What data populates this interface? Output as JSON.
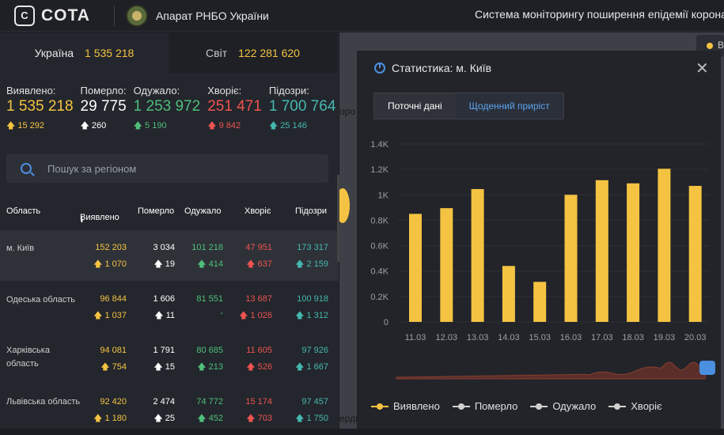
{
  "header": {
    "logo_text": "COTA",
    "logo_mark": "C",
    "org": "Апарат РНБО України",
    "system_title": "Система моніторингу поширення епідемії коронавірусу"
  },
  "tabs": [
    {
      "label": "Україна",
      "value": "1 535 218"
    },
    {
      "label": "Світ",
      "value": "122 281 620"
    }
  ],
  "stats": [
    {
      "label": "Виявлено:",
      "value": "1 535 218",
      "delta": "15 292",
      "color": "yellow"
    },
    {
      "label": "Померло:",
      "value": "29 775",
      "delta": "260",
      "color": "white"
    },
    {
      "label": "Одужало:",
      "value": "1 253 972",
      "delta": "5 190",
      "color": "green"
    },
    {
      "label": "Хворіє:",
      "value": "251 471",
      "delta": "9 842",
      "color": "red"
    },
    {
      "label": "Підозри:",
      "value": "1 700 764",
      "delta": "25 146",
      "color": "teal"
    }
  ],
  "search": {
    "placeholder": "Пошук за регіоном"
  },
  "table": {
    "headers": [
      "Область",
      "Виявлено",
      "Померло",
      "Одужало",
      "Хворіє",
      "Підозри"
    ],
    "rows": [
      {
        "name": "м. Київ",
        "vals": [
          "152 203",
          "3 034",
          "101 218",
          "47 951",
          "173 317"
        ],
        "deltas": [
          "1 070",
          "19",
          "414",
          "637",
          "2 159"
        ]
      },
      {
        "name": "Одеська область",
        "vals": [
          "96 844",
          "1 606",
          "81 551",
          "13 687",
          "100 918"
        ],
        "deltas": [
          "1 037",
          "11",
          "-",
          "1 026",
          "1 312"
        ]
      },
      {
        "name": "Харківська область",
        "vals": [
          "94 081",
          "1 791",
          "80 685",
          "11 605",
          "97 926"
        ],
        "deltas": [
          "754",
          "15",
          "213",
          "526",
          "1 667"
        ]
      },
      {
        "name": "Львівська область",
        "vals": [
          "92 420",
          "2 474",
          "74 772",
          "15 174",
          "97 457"
        ],
        "deltas": [
          "1 180",
          "25",
          "452",
          "703",
          "1 750"
        ]
      }
    ]
  },
  "map": {
    "label_top": "оро",
    "label_bottom": "ерди",
    "badge_text": "В"
  },
  "panel": {
    "title": "Статистика: м. Київ",
    "tab_current": "Поточні дані",
    "tab_daily": "Щоденний приріст",
    "legend": [
      {
        "label": "Виявлено",
        "color": "#f5c342"
      },
      {
        "label": "Померло",
        "color": "#d0d0d0"
      },
      {
        "label": "Одужало",
        "color": "#d0d0d0"
      },
      {
        "label": "Хворіє",
        "color": "#d0d0d0"
      }
    ]
  },
  "chart_data": {
    "type": "bar",
    "categories": [
      "11.03",
      "12.03",
      "13.03",
      "14.03",
      "15.03",
      "16.03",
      "17.03",
      "18.03",
      "19.03",
      "20.03"
    ],
    "series": [
      {
        "name": "Виявлено",
        "values": [
          850,
          895,
          1045,
          440,
          315,
          1000,
          1115,
          1090,
          1205,
          1070
        ]
      }
    ],
    "ytick_values": [
      0,
      200,
      400,
      600,
      800,
      1000,
      1200,
      1400
    ],
    "ytick_labels": [
      "0",
      "0.2K",
      "0.4K",
      "0.6K",
      "0.8K",
      "1K",
      "1.2K",
      "1.4K"
    ],
    "ylim": [
      0,
      1400
    ],
    "bar_color": "#f5c342"
  }
}
